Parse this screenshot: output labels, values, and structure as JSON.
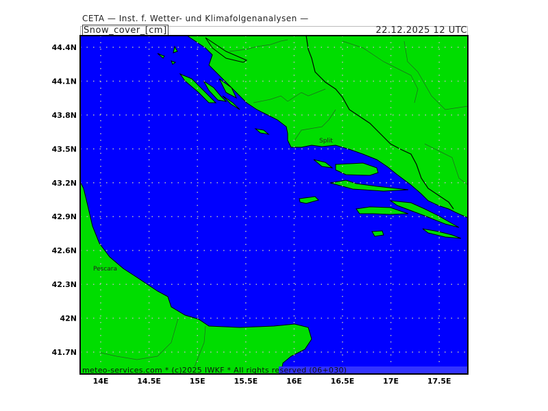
{
  "header": {
    "institute": "CETA — Inst. f. Wetter- und Klimafolgenanalysen —",
    "variable": "Snow_cover_[cm]",
    "valid_time": "22.12.2025 12 UTC"
  },
  "footer": {
    "credit": "meteo-services.com * (c)2025 IWKF * All rights reserved (06+030)"
  },
  "map": {
    "lat_labels": [
      "44.4N",
      "44.1N",
      "43.8N",
      "43.5N",
      "43.2N",
      "42.9N",
      "42.6N",
      "42.3N",
      "42N",
      "41.7N"
    ],
    "lat_values": [
      44.4,
      44.1,
      43.8,
      43.5,
      43.2,
      42.9,
      42.6,
      42.3,
      42.0,
      41.7
    ],
    "lon_labels": [
      "14E",
      "14.5E",
      "15E",
      "15.5E",
      "16E",
      "16.5E",
      "17E",
      "17.5E"
    ],
    "lon_values": [
      14,
      14.5,
      15,
      15.5,
      16,
      16.5,
      17,
      17.5
    ],
    "places": [
      "Split",
      "Pescara"
    ],
    "colors": {
      "sea": "#0000ff",
      "land": "#00dd00",
      "footer_band": "#3333ff",
      "grid": "#bbbbbb"
    },
    "snow_cover_cm": 0
  }
}
